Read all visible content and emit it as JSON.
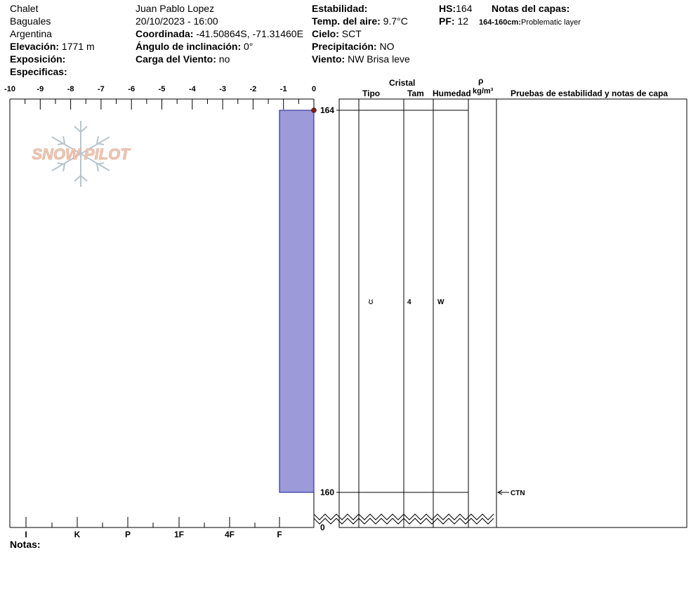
{
  "header": {
    "col1": {
      "location": "Chalet",
      "area": "Baguales",
      "country": "Argentina",
      "elevation_label": "Elevación:",
      "elevation_value": "1771 m",
      "aspect_label": "Exposición:",
      "aspect_value": "",
      "specifics_label": "Especificas:",
      "specifics_value": ""
    },
    "col2": {
      "observer": "Juan Pablo  Lopez",
      "datetime": "20/10/2023 - 16:00",
      "coord_label": "Coordinada:",
      "coord_value": "-41.50864S, -71.31460E",
      "slope_label": "Ángulo de inclinación:",
      "slope_value": "0°",
      "wind_load_label": "Carga del Viento:",
      "wind_load_value": "no"
    },
    "col3": {
      "stability_label": "Estabilidad:",
      "stability_value": "",
      "air_temp_label": "Temp. del aire:",
      "air_temp_value": "9.7°C",
      "sky_label": "Cielo:",
      "sky_value": "SCT",
      "precip_label": "Precipitación:",
      "precip_value": "NO",
      "wind_label": "Viento:",
      "wind_value": "NW Brisa leve"
    },
    "col4": {
      "hs_label": "HS:",
      "hs_value": "164",
      "pf_label": "PF:",
      "pf_value": "12",
      "notes_title": "Notas del capas:",
      "layer_note_range": "164-160cm:",
      "layer_note_text": "Problematic layer"
    }
  },
  "footer": {
    "notes_label": "Notas:"
  },
  "watermark": {
    "text": "SNOW PILOT"
  },
  "table_headers": {
    "crystal": "Cristal",
    "type": "Tipo",
    "size": "Tam",
    "moisture": "Humedad",
    "rho": "ρ",
    "density_unit": "kg/m³",
    "tests": "Pruebas de estabilidad y notas de capa"
  },
  "colors": {
    "hardness_fill": "#9c9ad8",
    "marker": "#8b1a1a",
    "watermark": "#f0c8b4"
  },
  "chart_data": {
    "type": "bar",
    "title": "",
    "temperature_axis": {
      "ticks": [
        "-10",
        "-9",
        "-8",
        "-7",
        "-6",
        "-5",
        "-4",
        "-3",
        "-2",
        "-1",
        "0"
      ],
      "range": [
        -10,
        0
      ]
    },
    "hardness_axis": {
      "ticks": [
        "I",
        "K",
        "P",
        "1F",
        "4F",
        "F"
      ]
    },
    "depth_axis": {
      "labels": [
        "164",
        "160",
        "0"
      ],
      "snow_height": 164
    },
    "layers": [
      {
        "top": 164,
        "bottom": 160,
        "hardness": "F",
        "grain_type": "ʊ",
        "grain_size": "4",
        "moisture": "W"
      }
    ],
    "tests": [
      {
        "depth": 160,
        "label": "CTN"
      }
    ],
    "surface_marker": {
      "depth": 164,
      "temperature": 0
    }
  }
}
